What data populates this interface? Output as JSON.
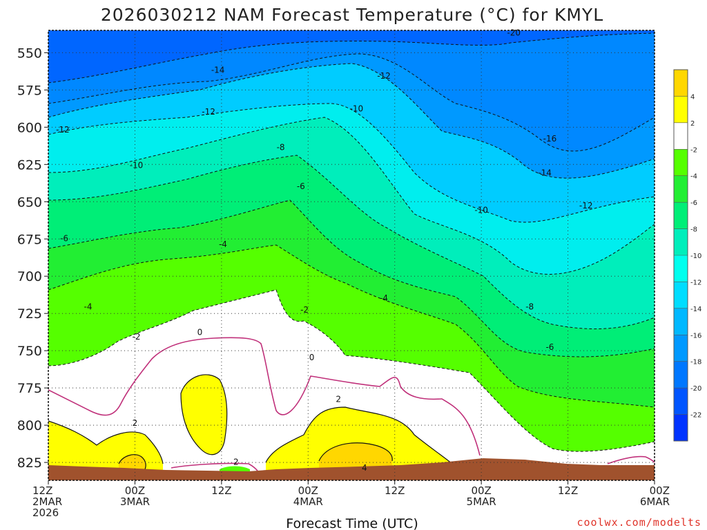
{
  "chart_data": {
    "type": "heatmap",
    "title": "2026030212 NAM Forecast Temperature (°C) for KMYL",
    "xlabel": "Forecast Time (UTC)",
    "ylabel": "",
    "x_ticks": [
      {
        "hour": 0,
        "lines": [
          "12Z",
          "2MAR",
          "2026"
        ]
      },
      {
        "hour": 12,
        "lines": [
          "00Z",
          "3MAR"
        ]
      },
      {
        "hour": 24,
        "lines": [
          "12Z"
        ]
      },
      {
        "hour": 36,
        "lines": [
          "00Z",
          "4MAR"
        ]
      },
      {
        "hour": 48,
        "lines": [
          "12Z"
        ]
      },
      {
        "hour": 60,
        "lines": [
          "00Z",
          "5MAR"
        ]
      },
      {
        "hour": 72,
        "lines": [
          "12Z"
        ]
      },
      {
        "hour": 84,
        "lines": [
          "00Z",
          "6MAR"
        ]
      }
    ],
    "xlim": [
      0,
      84
    ],
    "y_ticks": [
      550,
      575,
      600,
      625,
      650,
      675,
      700,
      725,
      750,
      775,
      800,
      825
    ],
    "ylim": [
      535,
      837
    ],
    "colorbar": {
      "ticks": [
        4,
        2,
        -2,
        -4,
        -6,
        -8,
        -10,
        -12,
        -14,
        -16,
        -18,
        -20,
        -22
      ],
      "colors": [
        "#ffd700",
        "#ffff00",
        "#ffffff",
        "#55ff00",
        "#22ee33",
        "#00ee77",
        "#00eebb",
        "#00ffee",
        "#00ddff",
        "#00b8ff",
        "#0099ff",
        "#0077ff",
        "#0055ff",
        "#0033ff"
      ]
    },
    "contour_labels": [
      {
        "text": "-20",
        "hour": 64.5,
        "p": 538
      },
      {
        "text": "-14",
        "hour": 23.5,
        "p": 563
      },
      {
        "text": "-12",
        "hour": 46.5,
        "p": 567
      },
      {
        "text": "-12",
        "hour": 22.2,
        "p": 591
      },
      {
        "text": "-10",
        "hour": 42.7,
        "p": 589
      },
      {
        "text": "-12",
        "hour": 2.0,
        "p": 603
      },
      {
        "text": "-16",
        "hour": 69.5,
        "p": 609
      },
      {
        "text": "-8",
        "hour": 32.2,
        "p": 615
      },
      {
        "text": "-10",
        "hour": 12.2,
        "p": 627
      },
      {
        "text": "-14",
        "hour": 68.8,
        "p": 632
      },
      {
        "text": "-6",
        "hour": 35.0,
        "p": 641
      },
      {
        "text": "-10",
        "hour": 60.0,
        "p": 657
      },
      {
        "text": "-12",
        "hour": 74.5,
        "p": 654
      },
      {
        "text": "-6",
        "hour": 2.2,
        "p": 676
      },
      {
        "text": "-4",
        "hour": 24.2,
        "p": 680
      },
      {
        "text": "-4",
        "hour": 46.5,
        "p": 716
      },
      {
        "text": "-4",
        "hour": 5.5,
        "p": 722
      },
      {
        "text": "-8",
        "hour": 66.7,
        "p": 722
      },
      {
        "text": "-2",
        "hour": 35.5,
        "p": 724
      },
      {
        "text": "0",
        "hour": 21.0,
        "p": 739
      },
      {
        "text": "-2",
        "hour": 12.2,
        "p": 742
      },
      {
        "text": "-6",
        "hour": 69.5,
        "p": 749
      },
      {
        "text": "0",
        "hour": 36.5,
        "p": 756
      },
      {
        "text": "2",
        "hour": 40.2,
        "p": 784
      },
      {
        "text": "2",
        "hour": 12.0,
        "p": 800
      },
      {
        "text": "2",
        "hour": 26.0,
        "p": 826
      },
      {
        "text": "4",
        "hour": 43.8,
        "p": 830
      }
    ]
  },
  "credit": "coolwx.com/modelts"
}
